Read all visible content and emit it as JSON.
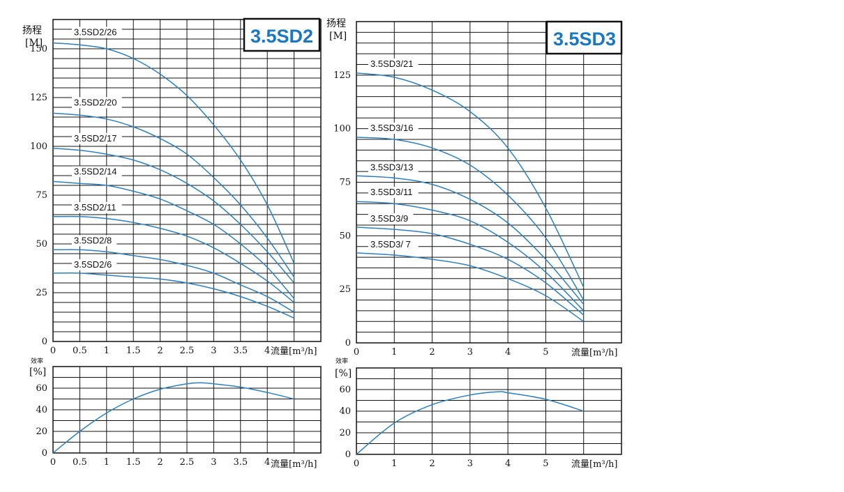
{
  "colors": {
    "curve": "#2b7fc1",
    "title": "#1a78c2",
    "grid": "#111111"
  },
  "chart_data": [
    {
      "type": "line",
      "title": "3.5SD2",
      "ylabel_line1": "扬程",
      "ylabel_line2": "[M]",
      "xlabel": "流量[m³/h]",
      "xlim": [
        0,
        5
      ],
      "ylim": [
        0,
        165
      ],
      "xticks": [
        "0",
        "0.5",
        "1",
        "1.5",
        "2",
        "2.5",
        "3",
        "3.5",
        "4"
      ],
      "yticks": [
        "0",
        "25",
        "50",
        "75",
        "100",
        "125",
        "150"
      ],
      "series": [
        {
          "name": "3.5SD2/26",
          "x": [
            0,
            0.5,
            1,
            1.5,
            2,
            2.5,
            3,
            3.5,
            4,
            4.5
          ],
          "y": [
            153,
            152,
            150,
            145,
            137,
            126,
            111,
            93,
            70,
            40
          ]
        },
        {
          "name": "3.5SD2/20",
          "x": [
            0,
            0.5,
            1,
            1.5,
            2,
            2.5,
            3,
            3.5,
            4,
            4.5
          ],
          "y": [
            117,
            116,
            114,
            110,
            104,
            96,
            84,
            70,
            53,
            33
          ]
        },
        {
          "name": "3.5SD2/17",
          "x": [
            0,
            0.5,
            1,
            1.5,
            2,
            2.5,
            3,
            3.5,
            4,
            4.5
          ],
          "y": [
            99,
            98,
            96,
            93,
            88,
            81,
            72,
            60,
            46,
            30
          ]
        },
        {
          "name": "3.5SD2/14",
          "x": [
            0,
            0.5,
            1,
            1.5,
            2,
            2.5,
            3,
            3.5,
            4,
            4.5
          ],
          "y": [
            82,
            81,
            80,
            77,
            73,
            67,
            60,
            50,
            38,
            22
          ]
        },
        {
          "name": "3.5SD2/11",
          "x": [
            0,
            0.5,
            1,
            1.5,
            2,
            2.5,
            3,
            3.5,
            4,
            4.5
          ],
          "y": [
            64,
            64,
            63,
            61,
            58,
            54,
            48,
            40,
            31,
            20
          ]
        },
        {
          "name": "3.5SD2/8",
          "x": [
            0,
            0.5,
            1,
            1.5,
            2,
            2.5,
            3,
            3.5,
            4,
            4.5
          ],
          "y": [
            47,
            47,
            46,
            44,
            42,
            39,
            35,
            29,
            23,
            15
          ]
        },
        {
          "name": "3.5SD2/6",
          "x": [
            0,
            0.5,
            1,
            1.5,
            2,
            2.5,
            3,
            3.5,
            4,
            4.5
          ],
          "y": [
            35,
            35,
            34,
            33,
            32,
            30,
            27,
            23,
            18,
            12
          ]
        }
      ]
    },
    {
      "type": "line",
      "title": "",
      "ylabel_line1": "效率",
      "ylabel_line2": "[%]",
      "xlabel": "流量[m³/h]",
      "xlim": [
        0,
        5
      ],
      "ylim": [
        0,
        80
      ],
      "xticks": [
        "0",
        "0.5",
        "1",
        "1.5",
        "2",
        "2.5",
        "3",
        "3.5",
        "4"
      ],
      "yticks": [
        "0",
        "20",
        "40",
        "60"
      ],
      "series": [
        {
          "name": "",
          "x": [
            0,
            0.5,
            1,
            1.5,
            2,
            2.5,
            2.75,
            3,
            3.5,
            4,
            4.5
          ],
          "y": [
            0,
            20,
            37,
            50,
            59,
            64,
            65,
            64,
            61,
            56,
            50
          ]
        }
      ]
    },
    {
      "type": "line",
      "title": "3.5SD3",
      "ylabel_line1": "扬程",
      "ylabel_line2": "[M]",
      "xlabel": "流量[m³/h]",
      "xlim": [
        0,
        7
      ],
      "ylim": [
        0,
        150
      ],
      "xticks": [
        "0",
        "1",
        "2",
        "3",
        "4",
        "5"
      ],
      "yticks": [
        "0",
        "25",
        "50",
        "75",
        "100",
        "125"
      ],
      "series": [
        {
          "name": "3.5SD3/21",
          "x": [
            0,
            1,
            2,
            3,
            4,
            5,
            6
          ],
          "y": [
            126,
            124,
            118,
            108,
            91,
            63,
            26
          ]
        },
        {
          "name": "3.5SD3/16",
          "x": [
            0,
            1,
            2,
            3,
            4,
            5,
            6
          ],
          "y": [
            96,
            95,
            91,
            83,
            69,
            49,
            20
          ]
        },
        {
          "name": "3.5SD3/13",
          "x": [
            0,
            1,
            2,
            3,
            4,
            5,
            6
          ],
          "y": [
            78,
            77,
            74,
            67,
            56,
            39,
            18
          ]
        },
        {
          "name": "3.5SD3/11",
          "x": [
            0,
            1,
            2,
            3,
            4,
            5,
            6
          ],
          "y": [
            66,
            65,
            62,
            57,
            47,
            33,
            15
          ]
        },
        {
          "name": "3.5SD3/9",
          "x": [
            0,
            1,
            2,
            3,
            4,
            5,
            6
          ],
          "y": [
            54,
            53,
            51,
            46,
            39,
            28,
            13
          ]
        },
        {
          "name": "3.5SD3/ 7",
          "x": [
            0,
            1,
            2,
            3,
            4,
            5,
            6
          ],
          "y": [
            42,
            41,
            39,
            36,
            30,
            22,
            10
          ]
        }
      ]
    },
    {
      "type": "line",
      "title": "",
      "ylabel_line1": "效率",
      "ylabel_line2": "[%]",
      "xlabel": "流量[m³/h]",
      "xlim": [
        0,
        7
      ],
      "ylim": [
        0,
        80
      ],
      "xticks": [
        "0",
        "1",
        "2",
        "3",
        "4",
        "5"
      ],
      "yticks": [
        "0",
        "20",
        "40",
        "60"
      ],
      "series": [
        {
          "name": "",
          "x": [
            0,
            1,
            2,
            3,
            3.75,
            4,
            5,
            6
          ],
          "y": [
            0,
            29,
            46,
            55,
            58,
            57,
            51,
            40
          ]
        }
      ]
    }
  ]
}
